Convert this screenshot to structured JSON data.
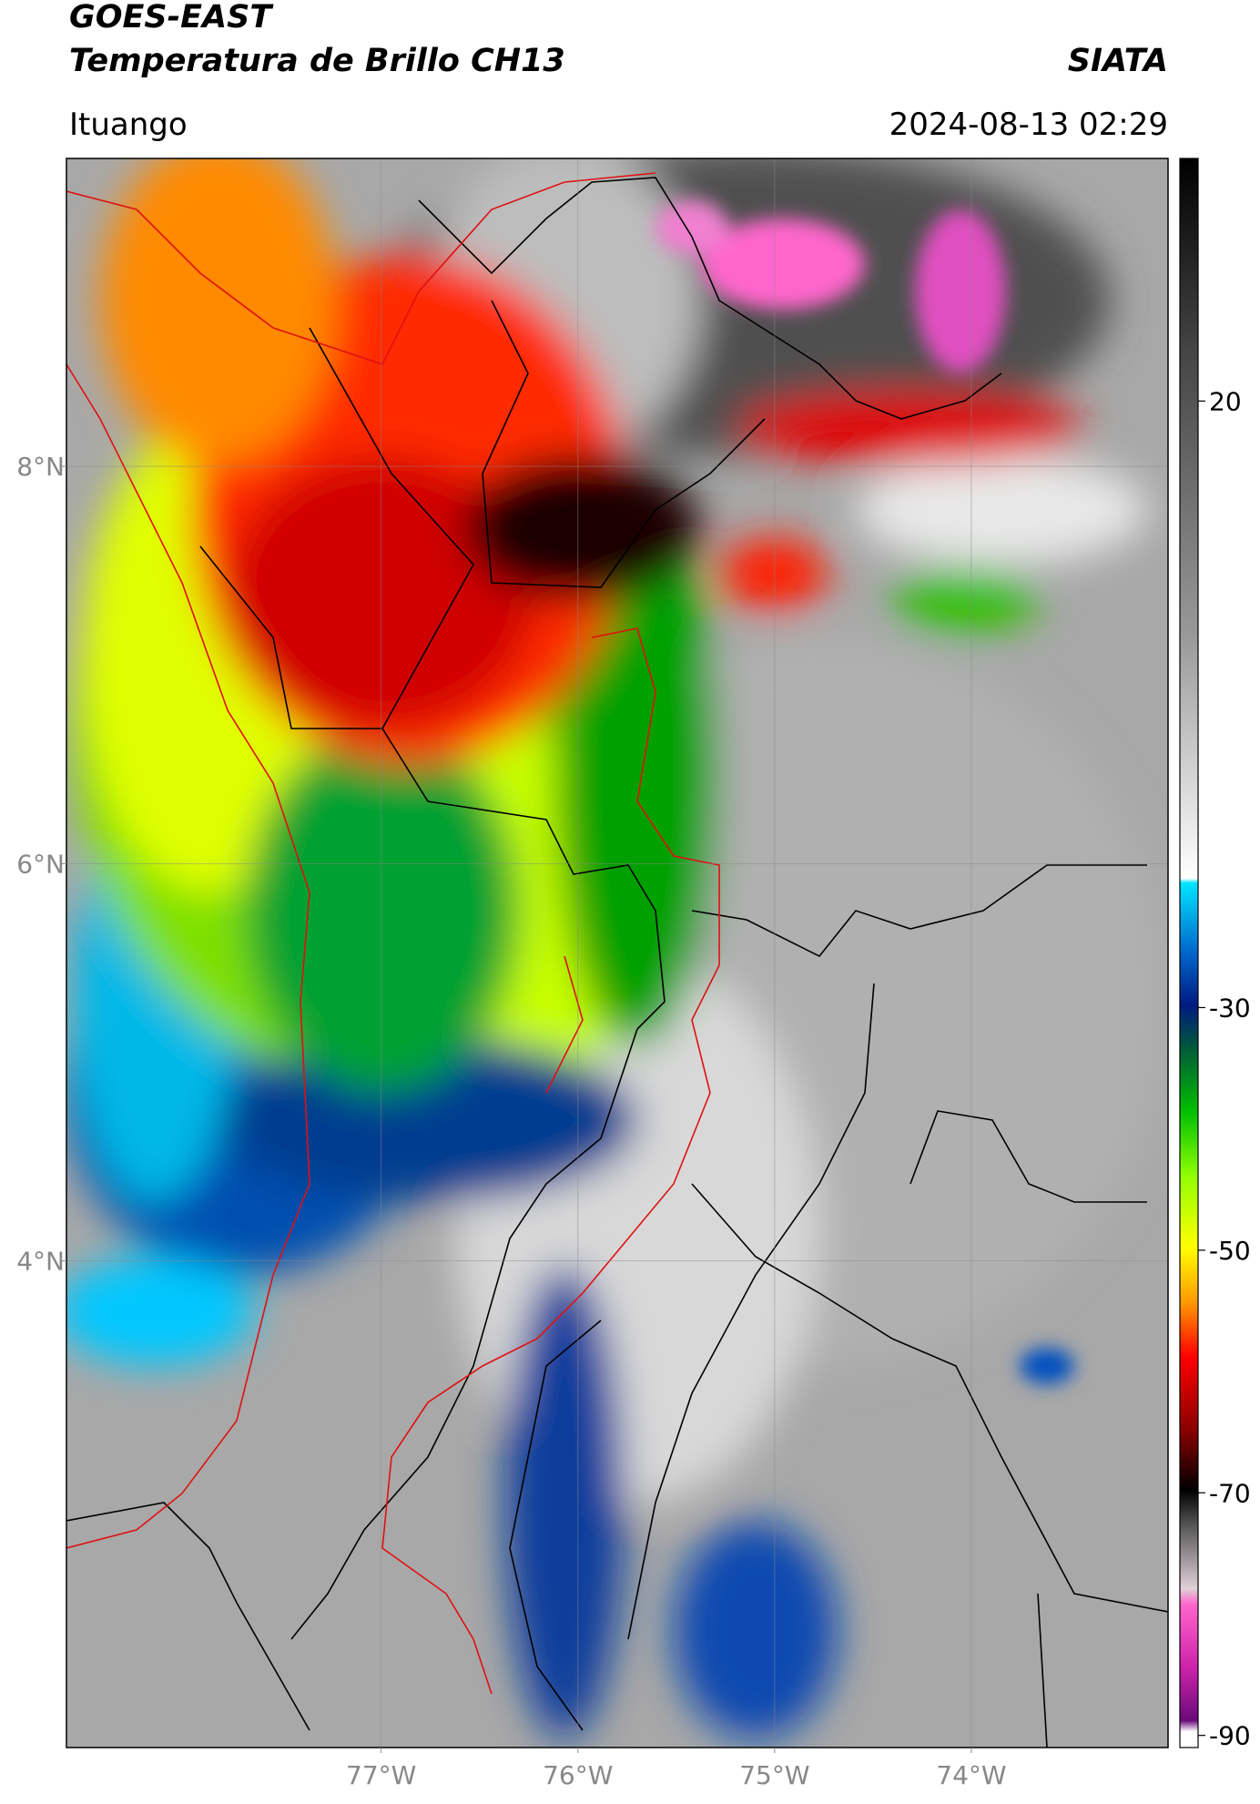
{
  "header": {
    "satellite": "GOES-EAST",
    "product": "Temperatura de Brillo CH13",
    "source": "SIATA",
    "location": "Ituango",
    "datetime": "2024-08-13 02:29"
  },
  "map": {
    "lon_range": [
      -78.6,
      -73.0
    ],
    "lat_range": [
      1.55,
      9.55
    ],
    "grid": true,
    "lon_ticks": [
      {
        "value": -77,
        "label": "77°W"
      },
      {
        "value": -76,
        "label": "76°W"
      },
      {
        "value": -75,
        "label": "75°W"
      },
      {
        "value": -74,
        "label": "74°W"
      }
    ],
    "lat_ticks": [
      {
        "value": 8,
        "label": "8°N"
      },
      {
        "value": 6,
        "label": "6°N"
      },
      {
        "value": 4,
        "label": "4°N"
      }
    ]
  },
  "colorbar": {
    "range": [
      -91,
      40
    ],
    "ticks": [
      20,
      -30,
      -50,
      -70,
      -90
    ]
  }
}
